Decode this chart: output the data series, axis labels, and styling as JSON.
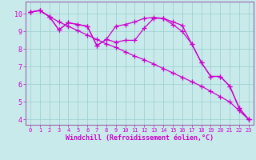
{
  "xlabel": "Windchill (Refroidissement éolien,°C)",
  "background_color": "#c8eaea",
  "grid_color": "#99cccc",
  "line_color": "#cc00cc",
  "spine_color": "#9966aa",
  "xlim": [
    -0.5,
    23.5
  ],
  "ylim": [
    3.7,
    10.7
  ],
  "xticks": [
    0,
    1,
    2,
    3,
    4,
    5,
    6,
    7,
    8,
    9,
    10,
    11,
    12,
    13,
    14,
    15,
    16,
    17,
    18,
    19,
    20,
    21,
    22,
    23
  ],
  "yticks": [
    4,
    5,
    6,
    7,
    8,
    9,
    10
  ],
  "line1_x": [
    0,
    1,
    2,
    3,
    4,
    5,
    6,
    7,
    8,
    9,
    10,
    11,
    12,
    13,
    14,
    15,
    16,
    17,
    18,
    19,
    20,
    21,
    22,
    23
  ],
  "line1_y": [
    10.1,
    10.2,
    9.85,
    9.55,
    9.3,
    9.05,
    8.8,
    8.55,
    8.3,
    8.1,
    7.85,
    7.6,
    7.4,
    7.15,
    6.9,
    6.65,
    6.4,
    6.15,
    5.9,
    5.6,
    5.3,
    5.0,
    4.5,
    4.0
  ],
  "line2_x": [
    0,
    1,
    2,
    3,
    4,
    5,
    6,
    7,
    8,
    9,
    10,
    11,
    12,
    13,
    14,
    15,
    16,
    17,
    18,
    19,
    20,
    21,
    22,
    23
  ],
  "line2_y": [
    10.1,
    10.2,
    9.85,
    9.1,
    9.5,
    9.4,
    9.3,
    8.2,
    8.55,
    9.3,
    9.4,
    9.55,
    9.75,
    9.8,
    9.75,
    9.55,
    9.35,
    8.3,
    7.25,
    6.45,
    6.45,
    5.9,
    4.65,
    4.0
  ],
  "line3_x": [
    0,
    1,
    2,
    3,
    4,
    5,
    6,
    7,
    8,
    9,
    10,
    11,
    12,
    13,
    14,
    15,
    16,
    17,
    18,
    19,
    20,
    21,
    22,
    23
  ],
  "line3_y": [
    10.1,
    10.2,
    9.85,
    9.1,
    9.5,
    9.4,
    9.3,
    8.2,
    8.55,
    8.4,
    8.5,
    8.5,
    9.2,
    9.75,
    9.75,
    9.4,
    9.0,
    8.3,
    7.25,
    6.45,
    6.45,
    5.9,
    4.65,
    4.0
  ]
}
